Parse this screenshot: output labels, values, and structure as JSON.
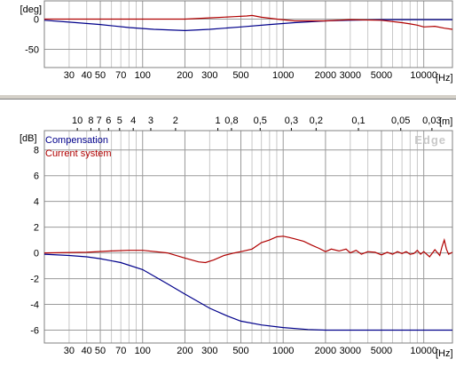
{
  "colors": {
    "compensation": "#00008b",
    "current_system": "#b00000",
    "grid_major": "#9a9a9a",
    "grid_minor": "#c8c8c8",
    "separator": "#d4d0c8"
  },
  "top_chart": {
    "unit_label": "[deg]",
    "freq_unit_label": "[Hz]"
  },
  "bottom_chart": {
    "unit_label": "[dB]",
    "wavelength_unit_label": "[m]",
    "freq_unit_label": "[Hz]",
    "watermark": "Edge",
    "legend": [
      "Compensation",
      "Current system"
    ]
  },
  "chart_data": [
    {
      "type": "line",
      "name": "phase",
      "x_scale": "log",
      "xlim": [
        20,
        16000
      ],
      "ylim": [
        -80,
        30
      ],
      "xlabel": "[Hz]",
      "ylabel": "[deg]",
      "grid": true,
      "y_ticks": [
        0,
        -50
      ],
      "x_ticks": [
        "30",
        "40",
        "50",
        "70",
        "100",
        "200",
        "300",
        "500",
        "1000",
        "2000",
        "3000",
        "5000",
        "10000"
      ],
      "series": [
        {
          "color": "#00008b",
          "x": [
            20,
            30,
            50,
            80,
            120,
            200,
            300,
            500,
            800,
            1200,
            2000,
            3000,
            5000,
            10000,
            16000
          ],
          "y": [
            -2,
            -5,
            -9,
            -14,
            -17,
            -19,
            -17,
            -13,
            -9,
            -6,
            -3,
            -2,
            -1,
            -1,
            -1
          ]
        },
        {
          "color": "#b00000",
          "x": [
            20,
            50,
            100,
            200,
            300,
            450,
            550,
            600,
            700,
            900,
            1200,
            2000,
            3000,
            5000,
            7000,
            8000,
            9000,
            10000,
            12000,
            14000,
            16000
          ],
          "y": [
            0,
            0,
            0,
            0,
            2,
            4,
            5,
            6,
            3,
            0,
            -3,
            -3,
            -1,
            -2,
            -6,
            -8,
            -10,
            -13,
            -12,
            -15,
            -17
          ]
        }
      ]
    },
    {
      "type": "line",
      "name": "magnitude",
      "x_scale": "log",
      "xlim": [
        20,
        16000
      ],
      "ylim": [
        -7,
        9.5
      ],
      "xlabel": "[Hz]",
      "ylabel": "[dB]",
      "grid": true,
      "legend_position": "top-left",
      "y_ticks": [
        8,
        6,
        4,
        2,
        0,
        -2,
        -4,
        -6
      ],
      "x_ticks": [
        "30",
        "40",
        "50",
        "70",
        "100",
        "200",
        "300",
        "500",
        "1000",
        "2000",
        "3000",
        "5000",
        "10000"
      ],
      "top_axis": {
        "label": "[m]",
        "ticks": [
          "10",
          "8",
          "7",
          "6",
          "5",
          "4",
          "3",
          "2",
          "1",
          "0,8",
          "0,5",
          "0,3",
          "0,2",
          "0,1",
          "0,05",
          "0,03"
        ],
        "wavelength_m": [
          10,
          8,
          7,
          6,
          5,
          4,
          3,
          2,
          1,
          0.8,
          0.5,
          0.3,
          0.2,
          0.1,
          0.05,
          0.03
        ]
      },
      "series": [
        {
          "name": "Compensation",
          "color": "#00008b",
          "x": [
            20,
            30,
            40,
            50,
            70,
            100,
            150,
            200,
            300,
            400,
            500,
            700,
            1000,
            1500,
            2000,
            3000,
            5000,
            10000,
            16000
          ],
          "y": [
            -0.1,
            -0.2,
            -0.3,
            -0.45,
            -0.75,
            -1.3,
            -2.4,
            -3.2,
            -4.3,
            -4.9,
            -5.3,
            -5.6,
            -5.8,
            -5.95,
            -6.0,
            -6.0,
            -6.0,
            -6.0,
            -6.0
          ]
        },
        {
          "name": "Current system",
          "color": "#b00000",
          "x": [
            20,
            40,
            60,
            80,
            100,
            150,
            200,
            250,
            280,
            320,
            380,
            450,
            500,
            600,
            700,
            800,
            900,
            1000,
            1100,
            1200,
            1400,
            1600,
            1800,
            2000,
            2200,
            2500,
            2800,
            3000,
            3300,
            3600,
            4000,
            4500,
            5000,
            5500,
            6000,
            6500,
            7000,
            7500,
            8000,
            8500,
            9000,
            9500,
            10000,
            11000,
            12000,
            13000,
            13500,
            14000,
            14500,
            15000,
            16000
          ],
          "y": [
            0,
            0.05,
            0.15,
            0.2,
            0.2,
            0,
            -0.4,
            -0.7,
            -0.75,
            -0.55,
            -0.2,
            0,
            0.1,
            0.3,
            0.8,
            1.0,
            1.25,
            1.3,
            1.2,
            1.1,
            0.9,
            0.6,
            0.35,
            0.1,
            0.3,
            0.15,
            0.3,
            0,
            0.2,
            -0.1,
            0.1,
            0.05,
            -0.15,
            0.05,
            -0.1,
            0.1,
            -0.05,
            0.1,
            -0.1,
            -0.05,
            0.2,
            -0.1,
            0.1,
            -0.3,
            0.25,
            -0.2,
            0.5,
            1.0,
            0.3,
            -0.1,
            0.05
          ]
        }
      ]
    }
  ]
}
